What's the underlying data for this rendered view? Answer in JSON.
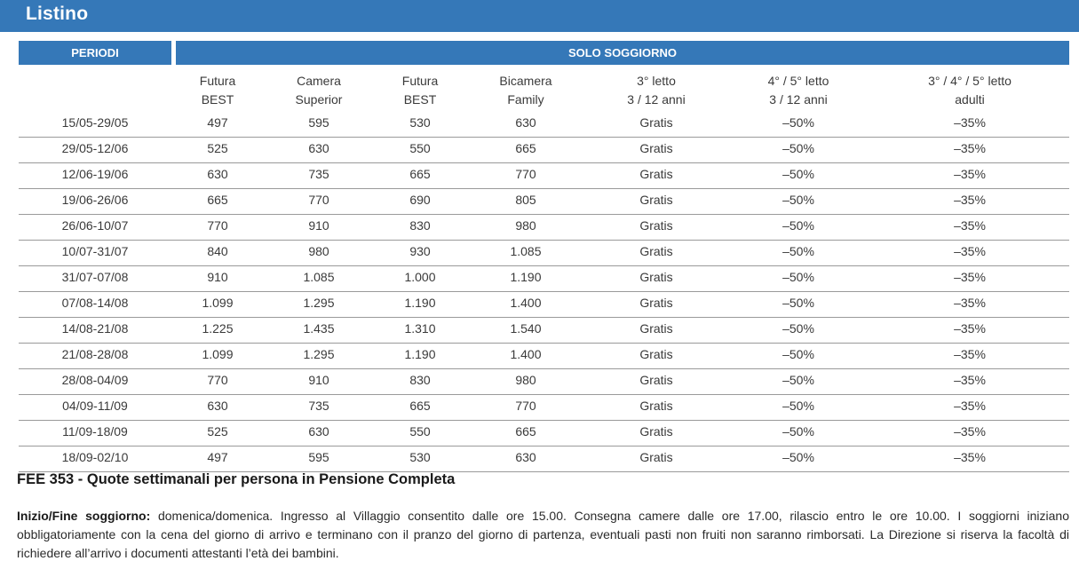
{
  "header": {
    "title": "Listino"
  },
  "table": {
    "group_headers": {
      "periods": "PERIODI",
      "stay": "SOLO SOGGIORNO"
    },
    "columns": [
      {
        "line1": "Futura",
        "line2": "BEST"
      },
      {
        "line1": "Camera",
        "line2": "Superior"
      },
      {
        "line1": "Futura",
        "line2": "BEST"
      },
      {
        "line1": "Bicamera",
        "line2": "Family"
      },
      {
        "line1": "3° letto",
        "line2": "3 / 12 anni"
      },
      {
        "line1": "4° / 5° letto",
        "line2": "3 / 12 anni"
      },
      {
        "line1": "3° / 4° / 5° letto",
        "line2": "adulti"
      }
    ],
    "rows": [
      [
        "15/05-29/05",
        "497",
        "595",
        "530",
        "630",
        "Gratis",
        "–50%",
        "–35%"
      ],
      [
        "29/05-12/06",
        "525",
        "630",
        "550",
        "665",
        "Gratis",
        "–50%",
        "–35%"
      ],
      [
        "12/06-19/06",
        "630",
        "735",
        "665",
        "770",
        "Gratis",
        "–50%",
        "–35%"
      ],
      [
        "19/06-26/06",
        "665",
        "770",
        "690",
        "805",
        "Gratis",
        "–50%",
        "–35%"
      ],
      [
        "26/06-10/07",
        "770",
        "910",
        "830",
        "980",
        "Gratis",
        "–50%",
        "–35%"
      ],
      [
        "10/07-31/07",
        "840",
        "980",
        "930",
        "1.085",
        "Gratis",
        "–50%",
        "–35%"
      ],
      [
        "31/07-07/08",
        "910",
        "1.085",
        "1.000",
        "1.190",
        "Gratis",
        "–50%",
        "–35%"
      ],
      [
        "07/08-14/08",
        "1.099",
        "1.295",
        "1.190",
        "1.400",
        "Gratis",
        "–50%",
        "–35%"
      ],
      [
        "14/08-21/08",
        "1.225",
        "1.435",
        "1.310",
        "1.540",
        "Gratis",
        "–50%",
        "–35%"
      ],
      [
        "21/08-28/08",
        "1.099",
        "1.295",
        "1.190",
        "1.400",
        "Gratis",
        "–50%",
        "–35%"
      ],
      [
        "28/08-04/09",
        "770",
        "910",
        "830",
        "980",
        "Gratis",
        "–50%",
        "–35%"
      ],
      [
        "04/09-11/09",
        "630",
        "735",
        "665",
        "770",
        "Gratis",
        "–50%",
        "–35%"
      ],
      [
        "11/09-18/09",
        "525",
        "630",
        "550",
        "665",
        "Gratis",
        "–50%",
        "–35%"
      ],
      [
        "18/09-02/10",
        "497",
        "595",
        "530",
        "630",
        "Gratis",
        "–50%",
        "–35%"
      ]
    ]
  },
  "footer": {
    "title": "FEE 353 - Quote settimanali per persona in Pensione Completa",
    "notes_label": "Inizio/Fine soggiorno:",
    "notes_text": " domenica/domenica. Ingresso al Villaggio consentito dalle ore 15.00. Consegna camere dalle ore 17.00, rilascio entro le ore 10.00. I soggiorni iniziano obbligatoriamente con la cena del giorno di arrivo e terminano con il pranzo del giorno di partenza, eventuali pasti non fruiti non saranno rimborsati. La Direzione si riserva la facoltà di richiedere all’arrivo i documenti attestanti l’età dei bambini."
  },
  "colors": {
    "header_blue": "#3578b8",
    "row_separator": "#9a9a9a"
  }
}
